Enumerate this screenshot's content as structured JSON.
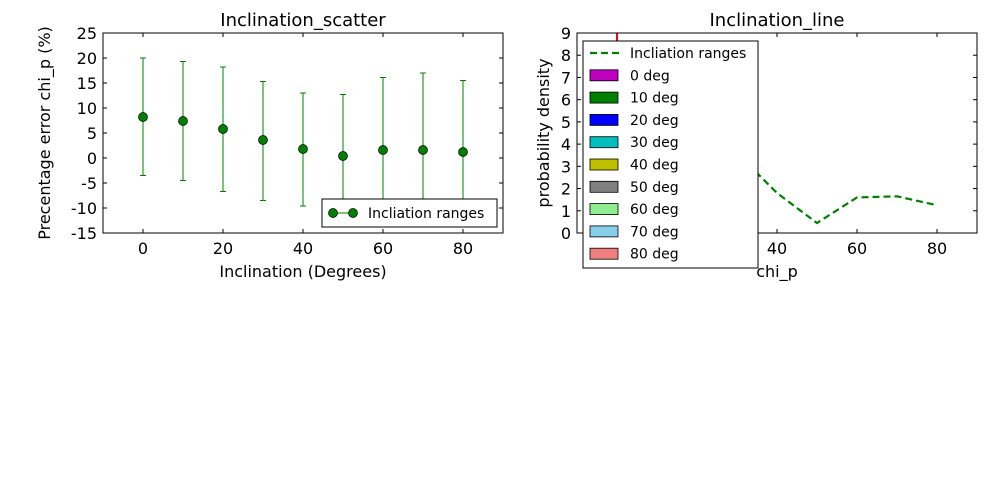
{
  "chart_data": [
    {
      "type": "scatter",
      "title": "Inclination_scatter",
      "xlabel": "Inclination (Degrees)",
      "ylabel": "Precentage error chi_p (%)",
      "xlim": [
        -10,
        90
      ],
      "ylim": [
        -15,
        25
      ],
      "xticks": [
        "0",
        "20",
        "40",
        "60",
        "80"
      ],
      "yticks": [
        "-15",
        "-10",
        "-5",
        "0",
        "5",
        "10",
        "15",
        "20",
        "25"
      ],
      "legend": {
        "position": "lower-right",
        "entries": [
          "Incliation ranges"
        ]
      },
      "colors": {
        "series": "#008000",
        "error": "#008000"
      },
      "series": [
        {
          "name": "Incliation ranges",
          "x": [
            0,
            10,
            20,
            30,
            40,
            50,
            60,
            70,
            80
          ],
          "y": [
            8.2,
            7.4,
            5.8,
            3.6,
            1.8,
            0.4,
            1.6,
            1.6,
            1.2
          ],
          "y_lower": [
            -3.5,
            -4.5,
            -6.7,
            -8.5,
            -9.6,
            -12.2,
            -13.5,
            -13.8,
            -13.2
          ],
          "y_upper": [
            20,
            19.3,
            18.2,
            15.3,
            13,
            12.7,
            16.1,
            17,
            15.5
          ]
        }
      ]
    },
    {
      "type": "line",
      "title": "Inclination_line",
      "xlabel": "chi_p",
      "ylabel": "probability density",
      "xlim": [
        -10,
        90
      ],
      "ylim": [
        0,
        9
      ],
      "xticks": [
        "40",
        "60",
        "80"
      ],
      "yticks": [
        "0",
        "1",
        "2",
        "3",
        "4",
        "5",
        "6",
        "7",
        "8",
        "9"
      ],
      "legend": {
        "position": "upper-left",
        "entries": [
          {
            "label": "Incliation ranges",
            "kind": "line",
            "color": "#008000"
          },
          {
            "label": "0 deg",
            "kind": "patch",
            "color": "#bf00bf"
          },
          {
            "label": "10 deg",
            "kind": "patch",
            "color": "#008000"
          },
          {
            "label": "20 deg",
            "kind": "patch",
            "color": "#0000ff"
          },
          {
            "label": "30 deg",
            "kind": "patch",
            "color": "#00bfbf"
          },
          {
            "label": "40 deg",
            "kind": "patch",
            "color": "#bfbf00"
          },
          {
            "label": "50 deg",
            "kind": "patch",
            "color": "#808080"
          },
          {
            "label": "60 deg",
            "kind": "patch",
            "color": "#90ee90"
          },
          {
            "label": "70 deg",
            "kind": "patch",
            "color": "#87ceeb"
          },
          {
            "label": "80 deg",
            "kind": "patch",
            "color": "#f08080"
          }
        ]
      },
      "series": [
        {
          "name": "Incliation ranges",
          "x": [
            0,
            10,
            20,
            30,
            40,
            50,
            60,
            70,
            80
          ],
          "y": [
            8.2,
            7.4,
            5.8,
            3.6,
            1.8,
            0.45,
            1.6,
            1.65,
            1.25
          ],
          "color": "#008000",
          "style": "dashed"
        }
      ],
      "vertical_marks": [
        {
          "x": 0,
          "y_from": 8.4,
          "y_to": 9,
          "color": "#ff0000"
        }
      ]
    }
  ]
}
